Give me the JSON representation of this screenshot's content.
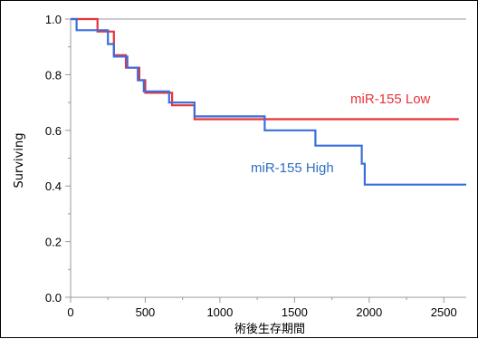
{
  "chart_data": {
    "type": "line",
    "step": true,
    "title": "",
    "xlabel": "術後生存期間",
    "ylabel": "Surviving",
    "xlim": [
      0,
      2650
    ],
    "ylim": [
      0,
      1.0
    ],
    "xticks": [
      0,
      500,
      1000,
      1500,
      2000,
      2500
    ],
    "xtick_labels": [
      "0",
      "500",
      "1000",
      "1500",
      "2000",
      "2500"
    ],
    "yticks": [
      0,
      0.2,
      0.4,
      0.6,
      0.8,
      1.0
    ],
    "ytick_labels": [
      "0.0",
      "0.2",
      "0.4",
      "0.6",
      "0.8",
      "1.0"
    ],
    "grid": false,
    "series": [
      {
        "name": "miR-155 Low",
        "color": "#e8333a",
        "x": [
          0,
          180,
          290,
          370,
          460,
          500,
          520,
          680,
          830,
          1300,
          2600
        ],
        "y": [
          1.0,
          0.955,
          0.87,
          0.825,
          0.78,
          0.735,
          0.735,
          0.69,
          0.64,
          0.64,
          0.64
        ]
      },
      {
        "name": "miR-155 High",
        "color": "#3a6fdb",
        "x": [
          0,
          40,
          250,
          290,
          380,
          450,
          490,
          530,
          660,
          830,
          1300,
          1640,
          1950,
          1970,
          2650
        ],
        "y": [
          1.0,
          0.96,
          0.91,
          0.865,
          0.825,
          0.78,
          0.74,
          0.74,
          0.7,
          0.65,
          0.6,
          0.545,
          0.48,
          0.405,
          0.405
        ]
      }
    ],
    "annotations": [
      {
        "text": "miR-155 Low",
        "color": "#e8333a",
        "series": 0
      },
      {
        "text": "miR-155 High",
        "color": "#2f6fc0",
        "series": 1
      }
    ]
  }
}
